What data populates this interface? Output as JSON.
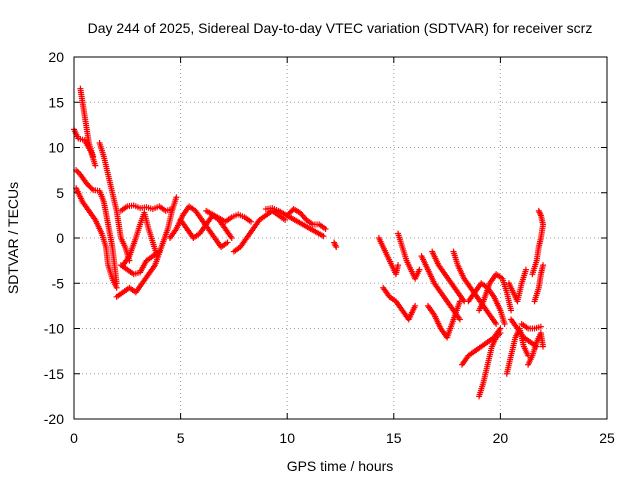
{
  "chart_data": {
    "type": "scatter",
    "title": "Day 244 of 2025, Sidereal Day-to-day VTEC variation (SDTVAR) for receiver scrz",
    "xlabel": "GPS time / hours",
    "ylabel": "SDTVAR / TECUs",
    "xlim": [
      0,
      25
    ],
    "ylim": [
      -20,
      20
    ],
    "xticks": [
      "0",
      "5",
      "10",
      "15",
      "20",
      "25"
    ],
    "yticks": [
      "-20",
      "-15",
      "-10",
      "-5",
      "0",
      "5",
      "10",
      "15",
      "20"
    ],
    "grid": true,
    "marker": "+",
    "color": "#ff0000",
    "series": [
      {
        "name": "s1",
        "points": [
          [
            0.3,
            16.5
          ],
          [
            0.4,
            15
          ],
          [
            0.5,
            13.5
          ],
          [
            0.6,
            12
          ],
          [
            0.7,
            10.5
          ],
          [
            0.9,
            9
          ]
        ]
      },
      {
        "name": "s2",
        "points": [
          [
            0,
            12
          ],
          [
            0.2,
            11
          ],
          [
            0.5,
            10.8
          ],
          [
            0.8,
            9.5
          ],
          [
            1.0,
            8
          ]
        ]
      },
      {
        "name": "s3",
        "points": [
          [
            0.1,
            7.5
          ],
          [
            0.3,
            7
          ],
          [
            0.6,
            6
          ],
          [
            0.9,
            5.3
          ],
          [
            1.2,
            5.2
          ],
          [
            1.4,
            4
          ],
          [
            1.6,
            1.5
          ],
          [
            1.8,
            -1
          ],
          [
            1.9,
            -3
          ],
          [
            2.0,
            -5
          ]
        ]
      },
      {
        "name": "s4",
        "points": [
          [
            0.1,
            5.5
          ],
          [
            0.4,
            4
          ],
          [
            0.7,
            3
          ],
          [
            1.0,
            2
          ],
          [
            1.3,
            0.5
          ],
          [
            1.5,
            -1
          ],
          [
            1.6,
            -3
          ],
          [
            1.8,
            -4.5
          ],
          [
            2.0,
            -5.5
          ]
        ]
      },
      {
        "name": "s5",
        "points": [
          [
            1.2,
            10.5
          ],
          [
            1.4,
            9
          ],
          [
            1.6,
            7
          ],
          [
            1.8,
            5
          ],
          [
            2.0,
            3
          ],
          [
            2.1,
            1.5
          ],
          [
            2.2,
            0
          ],
          [
            2.4,
            -1
          ],
          [
            2.6,
            -2.5
          ]
        ]
      },
      {
        "name": "s6",
        "points": [
          [
            2.2,
            -3
          ],
          [
            2.5,
            -3.5
          ],
          [
            2.8,
            -4
          ],
          [
            3.1,
            -3.8
          ],
          [
            3.4,
            -2.5
          ],
          [
            3.7,
            -2
          ],
          [
            4.0,
            -1.5
          ]
        ]
      },
      {
        "name": "s7",
        "points": [
          [
            2.0,
            -6.5
          ],
          [
            2.3,
            -6
          ],
          [
            2.6,
            -5.5
          ],
          [
            2.9,
            -6
          ],
          [
            3.2,
            -5
          ],
          [
            3.5,
            -4
          ],
          [
            3.8,
            -3
          ],
          [
            4.1,
            -1
          ],
          [
            4.4,
            1
          ],
          [
            4.6,
            3
          ],
          [
            4.8,
            4.5
          ]
        ]
      },
      {
        "name": "s8",
        "points": [
          [
            2.2,
            3
          ],
          [
            2.5,
            3.5
          ],
          [
            2.8,
            3.6
          ],
          [
            3.1,
            3.3
          ],
          [
            3.4,
            3.4
          ],
          [
            3.7,
            3.2
          ],
          [
            4.0,
            3.5
          ],
          [
            4.3,
            3
          ],
          [
            4.6,
            3.2
          ]
        ]
      },
      {
        "name": "s9",
        "points": [
          [
            2.3,
            -3
          ],
          [
            2.6,
            -2
          ],
          [
            2.9,
            0
          ],
          [
            3.1,
            1.5
          ],
          [
            3.3,
            2.8
          ],
          [
            3.5,
            1
          ],
          [
            3.7,
            -0.5
          ],
          [
            3.9,
            -2
          ]
        ]
      },
      {
        "name": "s10",
        "points": [
          [
            4.5,
            0
          ],
          [
            4.8,
            1
          ],
          [
            5.1,
            2.5
          ],
          [
            5.4,
            3.5
          ],
          [
            5.7,
            3
          ],
          [
            6.0,
            2
          ],
          [
            6.3,
            1
          ],
          [
            6.6,
            0
          ],
          [
            6.9,
            -1
          ],
          [
            7.2,
            -0.5
          ]
        ]
      },
      {
        "name": "s11",
        "points": [
          [
            5.0,
            2
          ],
          [
            5.3,
            1
          ],
          [
            5.6,
            0
          ],
          [
            5.9,
            0.5
          ],
          [
            6.2,
            1.5
          ],
          [
            6.5,
            2.5
          ],
          [
            6.8,
            2
          ],
          [
            7.1,
            1
          ],
          [
            7.4,
            0
          ]
        ]
      },
      {
        "name": "s12",
        "points": [
          [
            6.2,
            3.0
          ],
          [
            6.5,
            2.6
          ],
          [
            6.8,
            2.2
          ],
          [
            7.1,
            1.8
          ],
          [
            7.4,
            2.3
          ],
          [
            7.7,
            2.6
          ],
          [
            8.0,
            2.3
          ],
          [
            8.3,
            1.8
          ]
        ]
      },
      {
        "name": "s13",
        "points": [
          [
            7.5,
            -1.5
          ],
          [
            7.8,
            -1
          ],
          [
            8.1,
            0
          ],
          [
            8.4,
            1
          ],
          [
            8.7,
            2
          ],
          [
            9.0,
            2.5
          ],
          [
            9.3,
            3
          ],
          [
            9.6,
            2.5
          ],
          [
            9.9,
            2
          ]
        ]
      },
      {
        "name": "s14",
        "points": [
          [
            9.0,
            3.2
          ],
          [
            9.3,
            3.3
          ],
          [
            9.6,
            3.0
          ],
          [
            9.9,
            2.6
          ],
          [
            10.2,
            2.2
          ],
          [
            10.5,
            1.8
          ],
          [
            10.8,
            1.4
          ],
          [
            11.1,
            1.0
          ],
          [
            11.4,
            0.6
          ],
          [
            11.7,
            0.2
          ]
        ]
      },
      {
        "name": "s15",
        "points": [
          [
            10.0,
            2.5
          ],
          [
            10.3,
            3.2
          ],
          [
            10.6,
            2.8
          ],
          [
            10.9,
            2.0
          ],
          [
            11.2,
            1.5
          ],
          [
            11.5,
            1.5
          ],
          [
            11.8,
            1.0
          ]
        ]
      },
      {
        "name": "s16",
        "points": [
          [
            12.2,
            -0.5
          ],
          [
            12.3,
            -1
          ]
        ]
      },
      {
        "name": "s17",
        "points": [
          [
            14.3,
            0
          ],
          [
            14.5,
            -1
          ],
          [
            14.7,
            -2
          ],
          [
            14.9,
            -3
          ],
          [
            15.1,
            -4
          ],
          [
            15.2,
            -3
          ]
        ]
      },
      {
        "name": "s18",
        "points": [
          [
            14.5,
            -5.5
          ],
          [
            14.8,
            -6.5
          ],
          [
            15.1,
            -7
          ],
          [
            15.4,
            -8
          ],
          [
            15.7,
            -9
          ],
          [
            16.0,
            -7.5
          ]
        ]
      },
      {
        "name": "s19",
        "points": [
          [
            15.2,
            0.5
          ],
          [
            15.4,
            -1
          ],
          [
            15.6,
            -2.5
          ],
          [
            15.8,
            -3.5
          ],
          [
            16.0,
            -4.5
          ],
          [
            16.2,
            -3.5
          ]
        ]
      },
      {
        "name": "s20",
        "points": [
          [
            16.3,
            -2
          ],
          [
            16.6,
            -3.5
          ],
          [
            16.9,
            -5
          ],
          [
            17.2,
            -6
          ],
          [
            17.5,
            -7
          ],
          [
            17.8,
            -8
          ],
          [
            18.1,
            -9
          ]
        ]
      },
      {
        "name": "s21",
        "points": [
          [
            16.8,
            -1.5
          ],
          [
            17.1,
            -3
          ],
          [
            17.4,
            -4
          ],
          [
            17.7,
            -5
          ],
          [
            18.0,
            -6
          ],
          [
            18.3,
            -7
          ]
        ]
      },
      {
        "name": "s22",
        "points": [
          [
            16.6,
            -7.5
          ],
          [
            16.9,
            -8.5
          ],
          [
            17.2,
            -10
          ],
          [
            17.5,
            -11
          ],
          [
            17.8,
            -9
          ],
          [
            18.1,
            -7
          ]
        ]
      },
      {
        "name": "s23",
        "points": [
          [
            17.8,
            -1.5
          ],
          [
            18.0,
            -3
          ],
          [
            18.3,
            -4.5
          ],
          [
            18.6,
            -5.5
          ],
          [
            18.9,
            -6.5
          ],
          [
            19.2,
            -7.5
          ],
          [
            19.5,
            -8.5
          ],
          [
            19.8,
            -9.5
          ]
        ]
      },
      {
        "name": "s24",
        "points": [
          [
            18.5,
            -7
          ],
          [
            18.8,
            -6
          ],
          [
            19.1,
            -5
          ],
          [
            19.4,
            -5.5
          ],
          [
            19.7,
            -6.5
          ],
          [
            20.0,
            -8
          ],
          [
            20.2,
            -9.5
          ]
        ]
      },
      {
        "name": "s25",
        "points": [
          [
            19.0,
            -8
          ],
          [
            19.2,
            -7
          ],
          [
            19.5,
            -5
          ],
          [
            19.8,
            -4
          ],
          [
            20.1,
            -4.5
          ],
          [
            20.3,
            -6
          ],
          [
            20.5,
            -8
          ]
        ]
      },
      {
        "name": "s26",
        "points": [
          [
            18.2,
            -14
          ],
          [
            18.5,
            -13
          ],
          [
            18.8,
            -12.5
          ],
          [
            19.1,
            -12
          ],
          [
            19.4,
            -11.5
          ],
          [
            19.7,
            -11
          ],
          [
            20.0,
            -10
          ]
        ]
      },
      {
        "name": "s27",
        "points": [
          [
            19.0,
            -17.5
          ],
          [
            19.2,
            -16
          ],
          [
            19.4,
            -14
          ],
          [
            19.6,
            -12
          ],
          [
            19.8,
            -11
          ],
          [
            20.0,
            -10.5
          ]
        ]
      },
      {
        "name": "s28",
        "points": [
          [
            20.3,
            -15
          ],
          [
            20.5,
            -13
          ],
          [
            20.7,
            -11
          ],
          [
            20.9,
            -10
          ],
          [
            21.1,
            -12
          ],
          [
            21.3,
            -13
          ]
        ]
      },
      {
        "name": "s29",
        "points": [
          [
            20.4,
            -5
          ],
          [
            20.6,
            -6
          ],
          [
            20.8,
            -7
          ],
          [
            21.0,
            -5
          ],
          [
            21.2,
            -3.5
          ]
        ]
      },
      {
        "name": "s30",
        "points": [
          [
            20.5,
            -9
          ],
          [
            20.8,
            -10
          ],
          [
            21.1,
            -11
          ],
          [
            21.4,
            -11.5
          ],
          [
            21.7,
            -12
          ]
        ]
      },
      {
        "name": "s31",
        "points": [
          [
            21.3,
            -14
          ],
          [
            21.5,
            -13
          ],
          [
            21.7,
            -11.5
          ],
          [
            21.9,
            -10.5
          ],
          [
            22.0,
            -12
          ]
        ]
      },
      {
        "name": "s32",
        "points": [
          [
            21.6,
            -7
          ],
          [
            21.8,
            -5.5
          ],
          [
            21.9,
            -4
          ],
          [
            22.0,
            -3
          ]
        ]
      },
      {
        "name": "s33",
        "points": [
          [
            21.5,
            -4
          ],
          [
            21.7,
            -2.5
          ],
          [
            21.8,
            -1
          ],
          [
            21.9,
            0
          ],
          [
            22.0,
            1.5
          ],
          [
            21.9,
            2.5
          ],
          [
            21.8,
            3
          ]
        ]
      },
      {
        "name": "s34",
        "points": [
          [
            21.0,
            -9.5
          ],
          [
            21.3,
            -10
          ],
          [
            21.6,
            -10
          ],
          [
            21.9,
            -9.8
          ]
        ]
      }
    ]
  }
}
